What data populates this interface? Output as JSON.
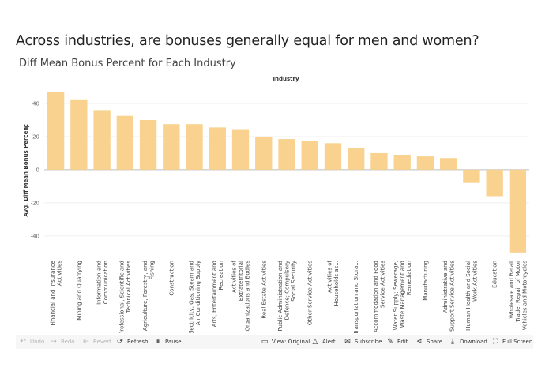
{
  "title": "Across industries, are bonuses generally equal for men and women?",
  "subtitle": "Diff Mean Bonus Percent for Each Industry",
  "chart_data": {
    "type": "bar",
    "column_header": "Industry",
    "ylabel": "Avg. Diff Mean Bonus Percent",
    "ylim": [
      -52,
      50
    ],
    "yticks": [
      40,
      20,
      0,
      -20,
      -40
    ],
    "bar_color": "#f8d28e",
    "categories": [
      [
        "Financial and Insurance",
        "Activities"
      ],
      [
        "Mining and Quarrying"
      ],
      [
        "Information and",
        "Communication"
      ],
      [
        "Professional, Scientific and",
        "Technical Activities"
      ],
      [
        "Agriculture, Forestry, and",
        "Fishing"
      ],
      [
        "Construction"
      ],
      [
        "Electricity, Gas, Steam and",
        "Air Conditioning Supply"
      ],
      [
        "Arts, Entertainment and",
        "Recreation"
      ],
      [
        "Activities of",
        "Extraterritorial",
        "Organizations and Bodies"
      ],
      [
        "Real Estate Activities"
      ],
      [
        "Public Administration and",
        "Defence; Compulsory",
        "Social Security"
      ],
      [
        "Other Service Activities"
      ],
      [
        "Activities of",
        "Households as..."
      ],
      [
        "Transportation and Stora..."
      ],
      [
        "Accommodation and Food",
        "Service Activities"
      ],
      [
        "Water Supply; Sewerage,",
        "Waste Management and",
        "Remediation"
      ],
      [
        "Manufacturing"
      ],
      [
        "Administrative and",
        "Support Service Activities"
      ],
      [
        "Human Health and Social",
        "Work Activities"
      ],
      [
        "Education"
      ],
      [
        "Wholesale and Retail",
        "Trade; Repair of Motor",
        "Vehicles and Motorcycles"
      ]
    ],
    "values": [
      47,
      42,
      36,
      32.5,
      30,
      27.5,
      27.5,
      25.5,
      24,
      20,
      18.5,
      17.5,
      16,
      13,
      10,
      9,
      8,
      7,
      -8,
      -16,
      -50
    ]
  },
  "toolbar": {
    "undo": "Undo",
    "redo": "Redo",
    "revert": "Revert",
    "refresh": "Refresh",
    "pause": "Pause",
    "view_original": "View: Original",
    "alert": "Alert",
    "subscribe": "Subscribe",
    "edit": "Edit",
    "share": "Share",
    "download": "Download",
    "full_screen": "Full Screen"
  }
}
